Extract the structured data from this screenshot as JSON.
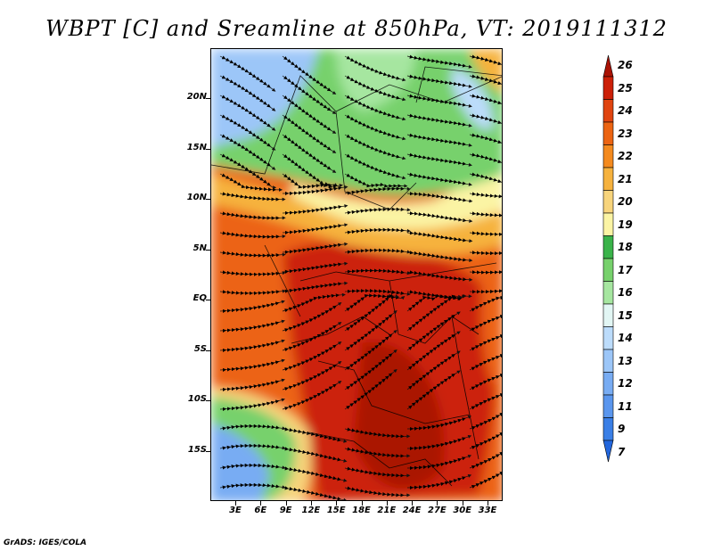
{
  "title": "WBPT [C] and Sreamline at 850hPa, VT: 2019111312",
  "credit": "GrADS: IGES/COLA",
  "lat_labels": [
    "20N",
    "15N",
    "10N",
    "5N",
    "EQ",
    "5S",
    "10S",
    "15S"
  ],
  "lon_labels": [
    "3E",
    "6E",
    "9E",
    "12E",
    "15E",
    "18E",
    "21E",
    "24E",
    "27E",
    "30E",
    "33E"
  ],
  "colorbar": {
    "levels": [
      "7",
      "9",
      "11",
      "12",
      "13",
      "14",
      "15",
      "16",
      "17",
      "18",
      "19",
      "20",
      "21",
      "22",
      "23",
      "24",
      "25",
      "26"
    ],
    "colors": [
      "#2266dd",
      "#3a7fe6",
      "#5a96ee",
      "#78acf3",
      "#9cc6f8",
      "#bcdcfb",
      "#e2f6f4",
      "#a6e6a0",
      "#77d16c",
      "#3ab34a",
      "#fbf4a4",
      "#f7d47c",
      "#f6b23e",
      "#f48a1e",
      "#ec6412",
      "#e04410",
      "#cc2008",
      "#aa1204"
    ]
  }
}
